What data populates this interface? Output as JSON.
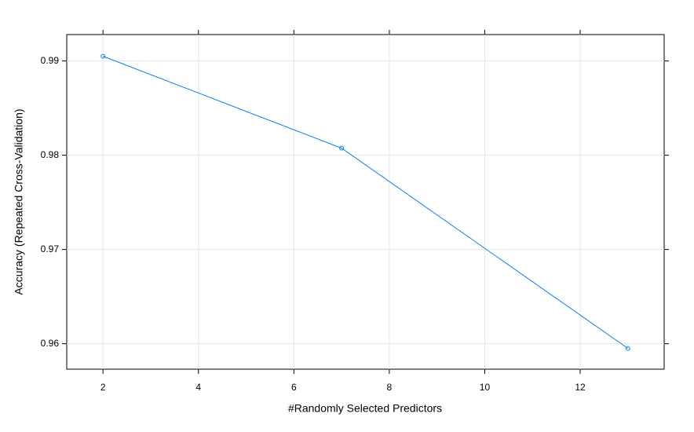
{
  "chart_data": {
    "type": "line",
    "x_label": "#Randomly Selected Predictors",
    "y_label": "Accuracy (Repeated Cross-Validation)",
    "x": [
      2,
      7,
      13
    ],
    "series": [
      {
        "color": "#0080ff",
        "values": [
          0.9905,
          0.98075,
          0.9595
        ]
      }
    ],
    "xlim": [
      1.24,
      13.76
    ],
    "ylim": [
      0.9573,
      0.9928
    ],
    "xticks": [
      2,
      4,
      6,
      8,
      10,
      12
    ],
    "yticks": [
      0.96,
      0.97,
      0.98,
      0.99
    ],
    "grid": true
  }
}
